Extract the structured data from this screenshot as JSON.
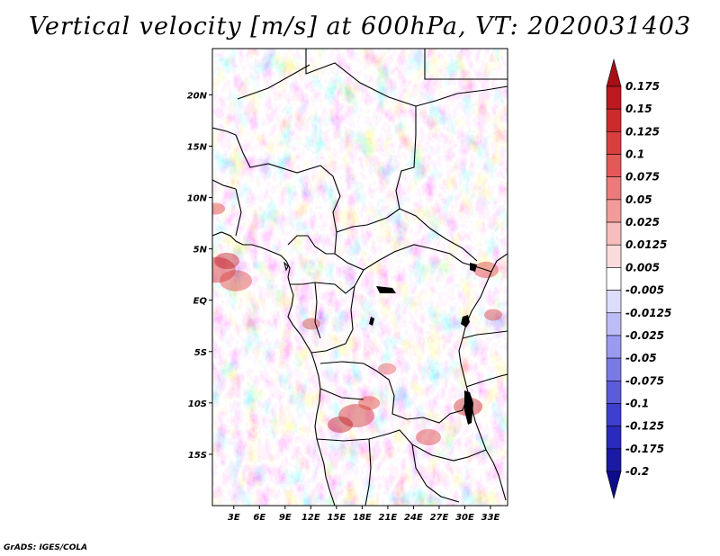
{
  "title": "Vertical velocity [m/s] at 600hPa, VT: 2020031403",
  "credit": "GrADS: IGES/COLA",
  "axes": {
    "lat_labels": [
      "20N",
      "15N",
      "10N",
      "5N",
      "EQ",
      "5S",
      "10S",
      "15S"
    ],
    "lat_values": [
      20,
      15,
      10,
      5,
      0,
      -5,
      -10,
      -15
    ],
    "lon_labels": [
      "3E",
      "6E",
      "9E",
      "12E",
      "15E",
      "18E",
      "21E",
      "24E",
      "27E",
      "30E",
      "33E"
    ],
    "lon_values": [
      3,
      6,
      9,
      12,
      15,
      18,
      21,
      24,
      27,
      30,
      33
    ],
    "lat_range": [
      -20,
      24.5
    ],
    "lon_range": [
      0.5,
      35.0
    ]
  },
  "colorbar": {
    "labels": [
      "0.175",
      "0.15",
      "0.125",
      "0.1",
      "0.075",
      "0.05",
      "0.025",
      "0.0125",
      "0.005",
      "-0.005",
      "-0.0125",
      "-0.025",
      "-0.05",
      "-0.075",
      "-0.1",
      "-0.125",
      "-0.175",
      "-0.2"
    ],
    "colors": [
      "#a50f15",
      "#bb1a1e",
      "#cb2b2b",
      "#d93f3f",
      "#e45858",
      "#ec7a7a",
      "#f29b9b",
      "#f7bcbc",
      "#fbdcdc",
      "#ffffff",
      "#dcdcfb",
      "#bcbcf6",
      "#9a9aef",
      "#7a7ae6",
      "#5b5bdc",
      "#3e3ecf",
      "#2a2abd",
      "#1a1aa6",
      "#0d0d8c"
    ]
  },
  "legend_colors": {
    "upward_color": "#a50f15",
    "downward_color": "#0d0d8c"
  }
}
